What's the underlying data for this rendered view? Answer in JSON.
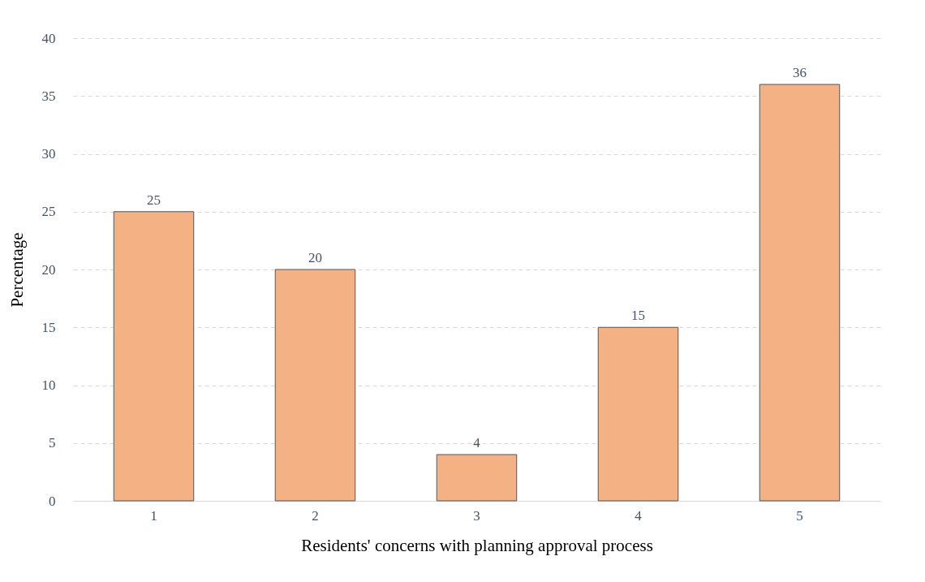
{
  "chart_data": {
    "type": "bar",
    "xlabel": "Residents' concerns with planning approval process",
    "ylabel": "Percentage",
    "categories": [
      "1",
      "2",
      "3",
      "4",
      "5"
    ],
    "values": [
      25,
      20,
      4,
      15,
      36
    ],
    "color": "#f4b183",
    "ylim": [
      0,
      40
    ],
    "yticks": [
      0,
      5,
      10,
      15,
      20,
      25,
      30,
      35,
      40
    ],
    "grid": "y",
    "data_labels": true
  }
}
